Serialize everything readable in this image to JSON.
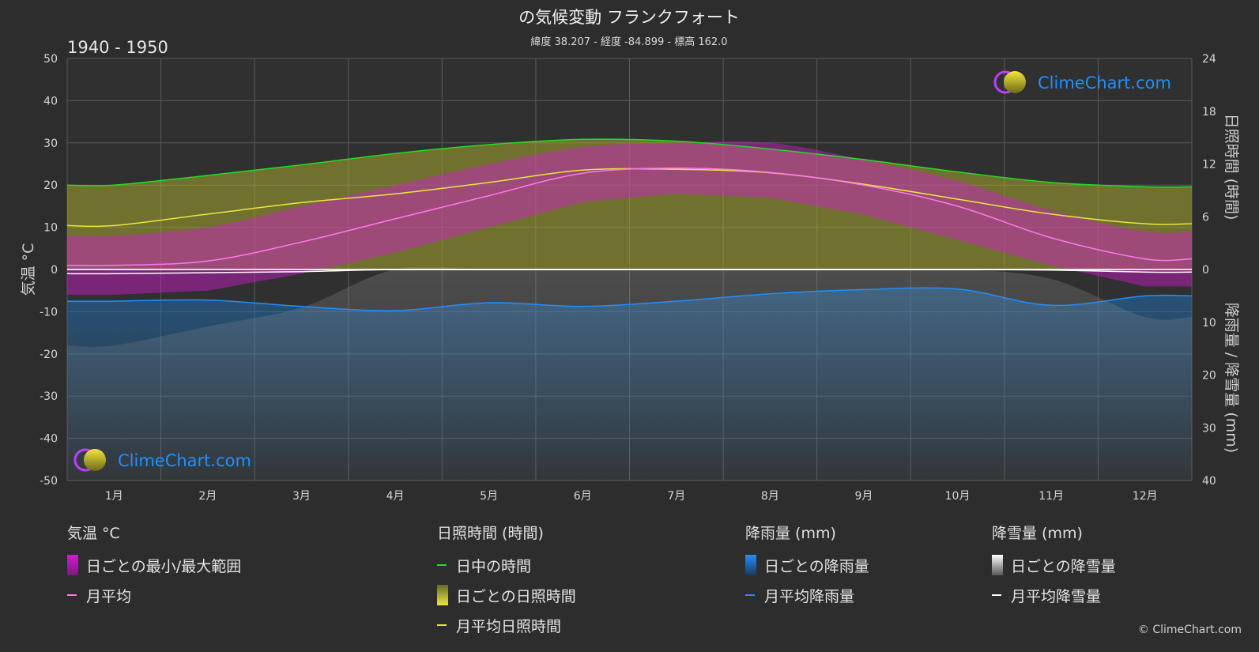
{
  "header": {
    "title": "の気候変動 フランクフォート",
    "subtitle": "緯度 38.207 - 経度 -84.899 - 標高 162.0",
    "period": "1940 - 1950"
  },
  "axes": {
    "left_label": "気温 °C",
    "right_top_label": "日照時間 (時間)",
    "right_bottom_label": "降雨量 / 降雪量 (mm)"
  },
  "logo": {
    "text": "ClimeChart.com"
  },
  "copyright": "© ClimeChart.com",
  "colors": {
    "temp_range": "#d21bd2",
    "temp_mean": "#ff77ee",
    "daylight": "#22dd22",
    "sunshine_fill": "#a8a830",
    "sunshine_mean": "#e8e83a",
    "rain": "#1e6fb4",
    "rain_mean": "#1e90ff",
    "snow": "#bbbbbb",
    "snow_mean": "#ffffff"
  },
  "legend": {
    "temperature": {
      "title": "気温 °C",
      "items": [
        {
          "label": "日ごとの最小/最大範囲"
        },
        {
          "label": "月平均"
        }
      ]
    },
    "sunshine": {
      "title": "日照時間 (時間)",
      "items": [
        {
          "label": "日中の時間"
        },
        {
          "label": "日ごとの日照時間"
        },
        {
          "label": "月平均日照時間"
        }
      ]
    },
    "rain": {
      "title": "降雨量 (mm)",
      "items": [
        {
          "label": "日ごとの降雨量"
        },
        {
          "label": "月平均降雨量"
        }
      ]
    },
    "snow": {
      "title": "降雪量 (mm)",
      "items": [
        {
          "label": "日ごとの降雪量"
        },
        {
          "label": "月平均降雪量"
        }
      ]
    }
  },
  "chart_data": {
    "type": "area",
    "categories": [
      "1月",
      "2月",
      "3月",
      "4月",
      "5月",
      "6月",
      "7月",
      "8月",
      "9月",
      "10月",
      "11月",
      "12月"
    ],
    "left_axis": {
      "ylim": [
        -50,
        50
      ],
      "ticks": [
        50,
        40,
        30,
        20,
        10,
        0,
        -10,
        -20,
        -30,
        -40,
        -50
      ]
    },
    "right_axis_sunshine": {
      "ylim": [
        0,
        24
      ],
      "ticks": [
        24,
        18,
        12,
        6,
        0
      ]
    },
    "right_axis_precip": {
      "ylim": [
        0,
        40
      ],
      "ticks": [
        0,
        10,
        20,
        30,
        40
      ]
    },
    "grid": true,
    "series": [
      {
        "name": "日中の時間",
        "unit": "h",
        "values": [
          9.6,
          10.7,
          11.9,
          13.2,
          14.2,
          14.8,
          14.6,
          13.7,
          12.5,
          11.1,
          9.9,
          9.4
        ]
      },
      {
        "name": "月平均日照時間",
        "unit": "h",
        "values": [
          5.0,
          6.3,
          7.6,
          8.6,
          9.9,
          11.3,
          11.4,
          11.0,
          9.7,
          8.0,
          6.3,
          5.2
        ]
      },
      {
        "name": "月平均",
        "unit": "°C",
        "values": [
          1.0,
          2.0,
          6.5,
          12.0,
          17.5,
          22.8,
          24.0,
          23.0,
          20.0,
          15.0,
          7.5,
          2.5
        ]
      },
      {
        "name": "日ごとの最小/最大範囲 (max)",
        "unit": "°C",
        "values": [
          8,
          10,
          15,
          20,
          25,
          29,
          30,
          30,
          26,
          21,
          14,
          9
        ]
      },
      {
        "name": "日ごとの最小/最大範囲 (min)",
        "unit": "°C",
        "values": [
          -6,
          -5,
          -1,
          4,
          10,
          16,
          18,
          17,
          13,
          7,
          1,
          -4
        ]
      },
      {
        "name": "月平均降雨量",
        "unit": "mm",
        "values": [
          6.0,
          5.8,
          7.0,
          7.8,
          6.3,
          7.0,
          6.0,
          4.6,
          3.8,
          3.7,
          6.8,
          5.0
        ]
      },
      {
        "name": "月平均降雪量",
        "unit": "mm",
        "values": [
          0.8,
          0.6,
          0.4,
          0.0,
          0.0,
          0.0,
          0.0,
          0.0,
          0.0,
          0.0,
          0.1,
          0.5
        ]
      }
    ]
  }
}
